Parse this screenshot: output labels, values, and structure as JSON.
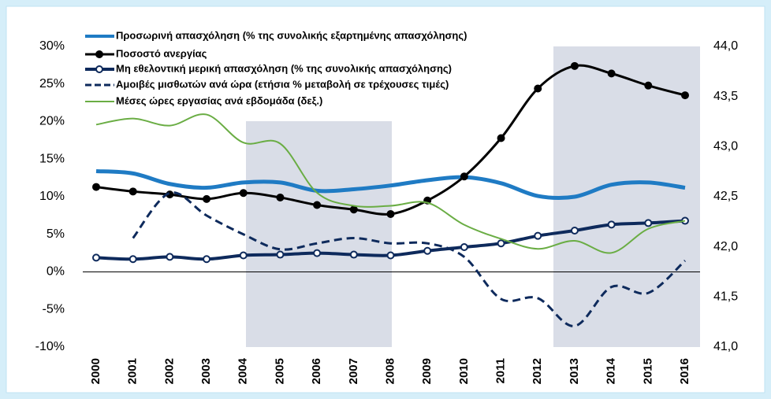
{
  "chart_data": {
    "type": "line",
    "categories": [
      "2000",
      "2001",
      "2002",
      "2003",
      "2004",
      "2005",
      "2006",
      "2007",
      "2008",
      "2009",
      "2010",
      "2011",
      "2012",
      "2013",
      "2014",
      "2015",
      "2016"
    ],
    "series": [
      {
        "name": "Προσωρινή απασχόληση (% της συνολικής εξαρτημένης απασχόλησης)",
        "color": "#1f7bc4",
        "width": 5,
        "marker": "none",
        "dash": "solid",
        "values": [
          13.4,
          13.1,
          11.7,
          11.2,
          11.9,
          11.9,
          10.8,
          11.0,
          11.5,
          12.2,
          12.6,
          11.8,
          10.1,
          10.0,
          11.6,
          11.9,
          11.2
        ]
      },
      {
        "name": "Ποσοστό ανεργίας",
        "color": "#000000",
        "width": 3,
        "marker": "filled",
        "dash": "solid",
        "values": [
          11.3,
          10.7,
          10.3,
          9.7,
          10.5,
          9.9,
          8.9,
          8.3,
          7.7,
          9.5,
          12.7,
          17.8,
          24.4,
          27.4,
          26.4,
          24.8,
          23.5
        ]
      },
      {
        "name": "Μη εθελοντική μερική απασχόληση (% της συνολικής απασχόλησης)",
        "color": "#0e2a5c",
        "width": 4,
        "marker": "hollow",
        "dash": "solid",
        "values": [
          1.9,
          1.7,
          2.0,
          1.7,
          2.2,
          2.3,
          2.5,
          2.3,
          2.2,
          2.8,
          3.3,
          3.8,
          4.8,
          5.5,
          6.3,
          6.5,
          6.8
        ]
      },
      {
        "name": "Αμοιβές μισθωτών ανά ώρα (ετήσια % μεταβολή σε τρέχουσες τιμές)",
        "color": "#0e2a5c",
        "width": 3,
        "marker": "none",
        "dash": "dashed",
        "values": [
          null,
          4.5,
          10.5,
          7.5,
          5.0,
          3.0,
          3.8,
          4.5,
          3.8,
          3.8,
          2.0,
          -3.6,
          -3.5,
          -7.2,
          -2.0,
          -2.8,
          1.5
        ]
      },
      {
        "name": "Μέσες ώρες εργασίας ανά εβδομάδα (δεξ.)",
        "color": "#6aad44",
        "width": 2,
        "marker": "none",
        "dash": "solid",
        "axis": "y2",
        "values": [
          43.22,
          43.28,
          43.21,
          43.32,
          43.04,
          43.03,
          42.54,
          42.41,
          42.41,
          42.44,
          42.22,
          42.08,
          41.98,
          42.06,
          41.94,
          42.18,
          42.26
        ]
      }
    ],
    "ylim": [
      -10,
      30
    ],
    "yticks": [
      {
        "value": -10,
        "label": "-10%"
      },
      {
        "value": -5,
        "label": "-5%"
      },
      {
        "value": 0,
        "label": "0%"
      },
      {
        "value": 5,
        "label": "5%"
      },
      {
        "value": 10,
        "label": "10%"
      },
      {
        "value": 15,
        "label": "15%"
      },
      {
        "value": 20,
        "label": "20%"
      },
      {
        "value": 25,
        "label": "25%"
      },
      {
        "value": 30,
        "label": "30%"
      }
    ],
    "y2lim": [
      41,
      44
    ],
    "y2ticks": [
      {
        "value": 41,
        "label": "41,0"
      },
      {
        "value": 41.5,
        "label": "41,5"
      },
      {
        "value": 42,
        "label": "42,0"
      },
      {
        "value": 42.5,
        "label": "42,5"
      },
      {
        "value": 43,
        "label": "43,0"
      },
      {
        "value": 43.5,
        "label": "43,5"
      },
      {
        "value": 44,
        "label": "44,0"
      }
    ],
    "grid": false,
    "legend": "top-left"
  }
}
